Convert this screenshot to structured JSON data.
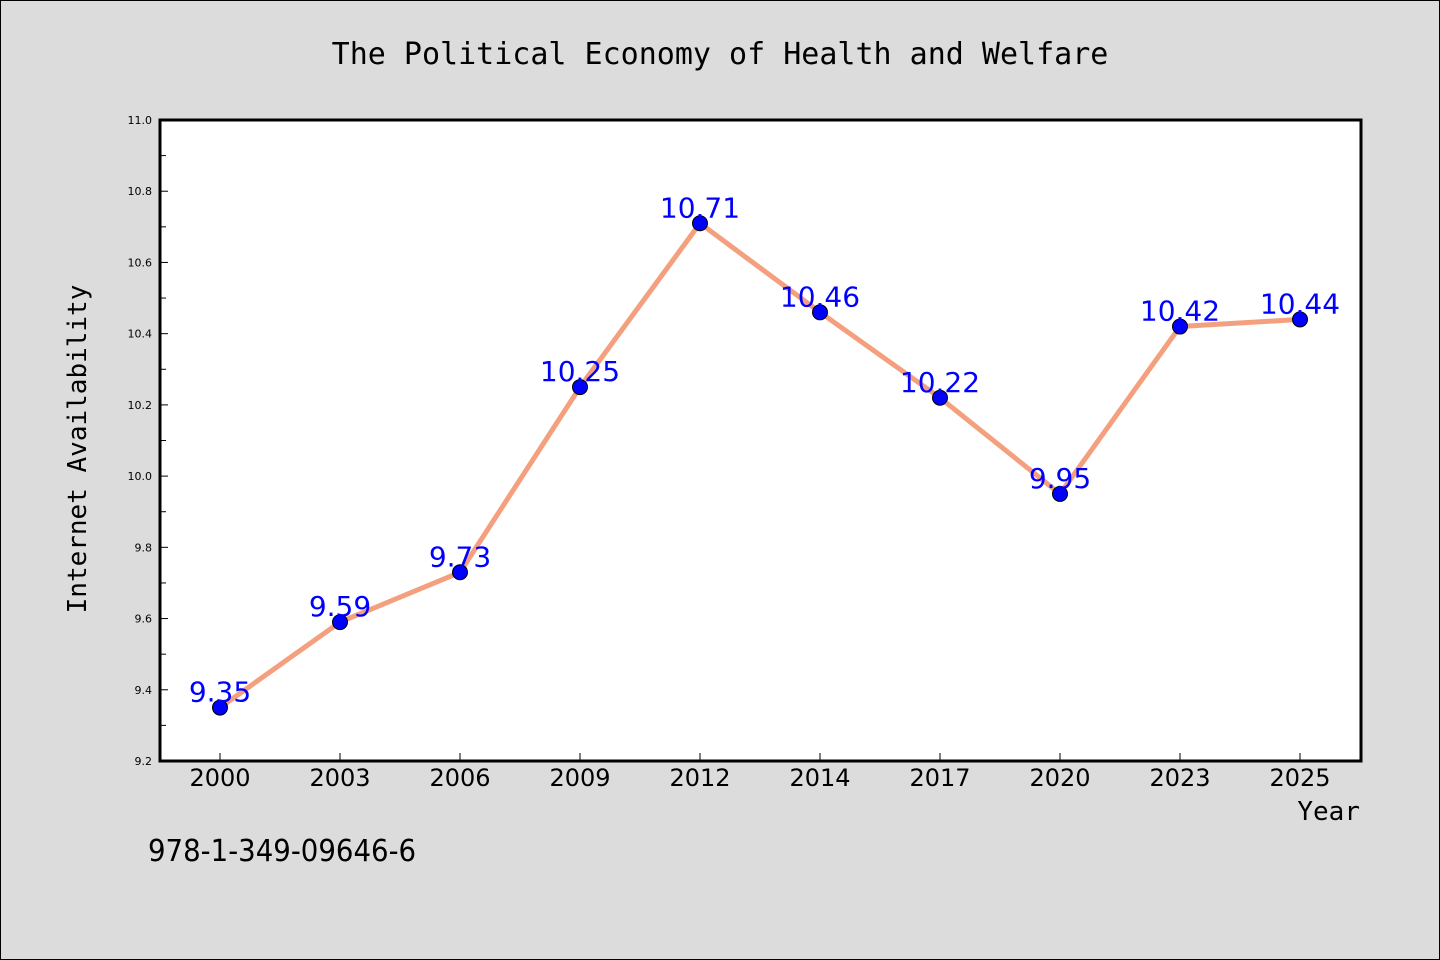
{
  "chart_data": {
    "type": "line",
    "title": "The Political Economy of Health and Welfare",
    "xlabel": "Year",
    "ylabel": "Internet Availability",
    "categories": [
      "2000",
      "2003",
      "2006",
      "2009",
      "2012",
      "2014",
      "2017",
      "2020",
      "2023",
      "2025"
    ],
    "values": [
      9.35,
      9.59,
      9.73,
      10.25,
      10.71,
      10.46,
      10.22,
      9.95,
      10.42,
      10.44
    ],
    "data_labels": [
      "9.35",
      "9.59",
      "9.73",
      "10.25",
      "10.71",
      "10.46",
      "10.22",
      "9.95",
      "10.42",
      "10.44"
    ],
    "ylim": [
      9.2,
      11.0
    ],
    "yticks": [
      "9.2",
      "9.4",
      "9.6",
      "9.8",
      "10.0",
      "10.2",
      "10.4",
      "10.6",
      "10.8",
      "11.0"
    ],
    "grid": false,
    "legend": "none",
    "colors": {
      "line": "#f4a07e",
      "marker": "#0000ff",
      "data_label": "#0000ff",
      "plot_background": "#ffffff",
      "figure_background": "#dcdcdc"
    }
  },
  "footer": {
    "isbn": "978-1-349-09646-6"
  }
}
